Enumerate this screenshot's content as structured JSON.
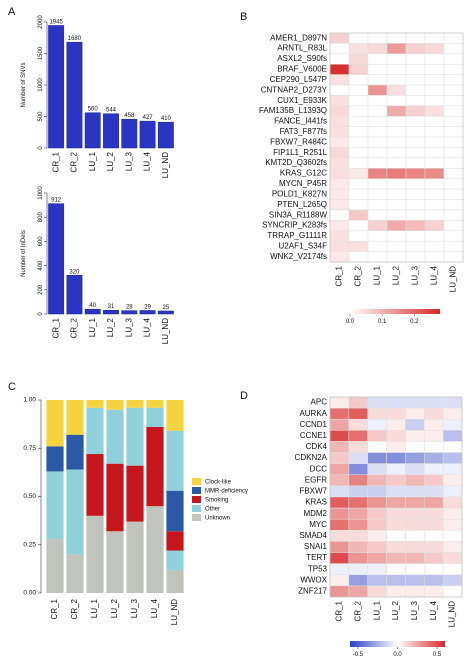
{
  "panels": {
    "a": "A",
    "b": "B",
    "c": "C",
    "d": "D"
  },
  "colors": {
    "bar_fill": "#2a35c4",
    "bar_stroke": "#1c2590",
    "heat_high": "#d62828",
    "heat_low": "#ffffff",
    "heat_neg": "#2c3fbf",
    "heat_cell_border": "#e0e0e0",
    "stack_clock": "#f4d33e",
    "stack_mmr": "#2b59a6",
    "stack_smoking": "#c4161c",
    "stack_other": "#8fd0da",
    "stack_unknown": "#c0c4bd"
  },
  "chart_data": [
    {
      "id": "a-top",
      "type": "bar",
      "categories": [
        "CR_1",
        "CR_2",
        "LU_1",
        "LU_2",
        "LU_3",
        "LU_4",
        "LU_ND"
      ],
      "values": [
        1945,
        1680,
        560,
        544,
        458,
        427,
        410
      ],
      "labels": [
        "1945",
        "1680",
        "560",
        "544",
        "458",
        "427",
        "410"
      ],
      "ylabel": "Number of SNVs",
      "ylim": [
        0,
        2000
      ],
      "yticks": [
        0,
        500,
        1000,
        1500,
        2000
      ],
      "ytick_labels": [
        "0",
        "500",
        "1000",
        "1500",
        "2000"
      ]
    },
    {
      "id": "a-bottom",
      "type": "bar",
      "categories": [
        "CR_1",
        "CR_2",
        "LU_1",
        "LU_2",
        "LU_3",
        "LU_4",
        "LU_ND"
      ],
      "values": [
        912,
        320,
        40,
        31,
        28,
        29,
        25
      ],
      "labels": [
        "912",
        "320",
        "40",
        "31",
        "28",
        "29",
        "25"
      ],
      "ylabel": "Number of InDels",
      "ylim": [
        0,
        1000
      ],
      "yticks": [
        0,
        200,
        400,
        600,
        800,
        1000
      ],
      "ytick_labels": [
        "0",
        "200",
        "400",
        "600",
        "800",
        "1000"
      ]
    },
    {
      "id": "b",
      "type": "heatmap",
      "rows": [
        "AMER1_D897N",
        "ARNTL_R83L",
        "ASXL2_S90fs",
        "BRAF_V600E",
        "CEP290_L547P",
        "CNTNAP2_D273Y",
        "CUX1_E933K",
        "FAM135B_L1393Q",
        "FANCE_I441fs",
        "FAT3_F877fs",
        "FBXW7_R484C",
        "FIP1L1_R251L",
        "KMT2D_Q3602fs",
        "KRAS_G12C",
        "MYCN_P45R",
        "POLD1_K827N",
        "PTEN_L265Q",
        "SIN3A_R1188W",
        "SYNCRIP_K283fs",
        "TRRAP_G1111R",
        "U2AF1_S34F",
        "WNK2_V2174fs"
      ],
      "columns": [
        "CR_1",
        "CR_2",
        "LU_1",
        "LU_2",
        "LU_3",
        "LU_4",
        "LU_ND"
      ],
      "values": [
        [
          0.06,
          0.0,
          0.0,
          0.0,
          0.0,
          0.0,
          0.0
        ],
        [
          0.0,
          0.04,
          0.05,
          0.13,
          0.06,
          0.05,
          0.0
        ],
        [
          0.0,
          0.05,
          0.0,
          0.0,
          0.0,
          0.0,
          0.0
        ],
        [
          0.27,
          0.06,
          0.0,
          0.0,
          0.0,
          0.0,
          0.0
        ],
        [
          0.04,
          0.0,
          0.0,
          0.0,
          0.0,
          0.0,
          0.0
        ],
        [
          0.0,
          0.0,
          0.14,
          0.04,
          0.0,
          0.0,
          0.0
        ],
        [
          0.04,
          0.0,
          0.0,
          0.0,
          0.0,
          0.0,
          0.0
        ],
        [
          0.05,
          0.0,
          0.0,
          0.11,
          0.06,
          0.04,
          0.0
        ],
        [
          0.04,
          0.0,
          0.0,
          0.0,
          0.0,
          0.0,
          0.0
        ],
        [
          0.04,
          0.0,
          0.0,
          0.0,
          0.0,
          0.0,
          0.0
        ],
        [
          0.03,
          0.0,
          0.0,
          0.0,
          0.0,
          0.0,
          0.0
        ],
        [
          0.05,
          0.0,
          0.0,
          0.0,
          0.0,
          0.0,
          0.0
        ],
        [
          0.04,
          0.0,
          0.0,
          0.0,
          0.0,
          0.0,
          0.0
        ],
        [
          0.04,
          0.03,
          0.16,
          0.17,
          0.16,
          0.15,
          0.0
        ],
        [
          0.03,
          0.0,
          0.0,
          0.0,
          0.0,
          0.0,
          0.0
        ],
        [
          0.03,
          0.0,
          0.0,
          0.0,
          0.0,
          0.0,
          0.0
        ],
        [
          0.03,
          0.0,
          0.0,
          0.0,
          0.0,
          0.0,
          0.0
        ],
        [
          0.0,
          0.07,
          0.0,
          0.0,
          0.0,
          0.0,
          0.0
        ],
        [
          0.03,
          0.0,
          0.06,
          0.11,
          0.09,
          0.06,
          0.0
        ],
        [
          0.04,
          0.0,
          0.0,
          0.0,
          0.0,
          0.0,
          0.0
        ],
        [
          0.04,
          0.04,
          0.0,
          0.0,
          0.0,
          0.0,
          0.0
        ],
        [
          0.03,
          0.0,
          0.0,
          0.0,
          0.0,
          0.0,
          0.0
        ]
      ],
      "vmin": 0,
      "vmax": 0.28,
      "colorbar_ticks": [
        0.0,
        0.1,
        0.2
      ],
      "colorbar_labels": [
        "0.0",
        "0.1",
        "0.2"
      ]
    },
    {
      "id": "c",
      "type": "bar",
      "stacked": true,
      "categories": [
        "CR_1",
        "CR_2",
        "LU_1",
        "LU_2",
        "LU_3",
        "LU_4",
        "LU_ND"
      ],
      "series": [
        {
          "name": "Unknown",
          "values": [
            0.28,
            0.2,
            0.4,
            0.32,
            0.37,
            0.45,
            0.12
          ]
        },
        {
          "name": "Other",
          "values": [
            0.35,
            0.44,
            0.0,
            0.0,
            0.0,
            0.0,
            0.1
          ]
        },
        {
          "name": "Smoking",
          "values": [
            0.0,
            0.0,
            0.32,
            0.35,
            0.29,
            0.41,
            0.1
          ]
        },
        {
          "name": "MMR-deficiency",
          "values": [
            0.13,
            0.18,
            0.0,
            0.0,
            0.0,
            0.0,
            0.21
          ]
        },
        {
          "name": "Other",
          "values": [
            0.0,
            0.0,
            0.24,
            0.28,
            0.3,
            0.1,
            0.31
          ]
        },
        {
          "name": "Clock-like",
          "values": [
            0.24,
            0.18,
            0.04,
            0.05,
            0.04,
            0.04,
            0.16
          ]
        }
      ],
      "legend": [
        {
          "name": "Clock-like",
          "color": "#f4d33e"
        },
        {
          "name": "MMR-deficiency",
          "color": "#2b59a6"
        },
        {
          "name": "Smoking",
          "color": "#c4161c"
        },
        {
          "name": "Other",
          "color": "#8fd0da"
        },
        {
          "name": "Unknown",
          "color": "#c0c4bd"
        }
      ],
      "legend_position": "right",
      "ylim": [
        0,
        1
      ],
      "yticks": [
        0,
        0.25,
        0.5,
        0.75,
        1.0
      ],
      "ytick_labels": [
        "0.00",
        "0.25",
        "0.50",
        "0.75",
        "1.00"
      ]
    },
    {
      "id": "d",
      "type": "heatmap",
      "rows": [
        "APC",
        "AURKA",
        "CCND1",
        "CCNE1",
        "CDK4",
        "CDKN2A",
        "DCC",
        "EGFR",
        "FBXW7",
        "KRAS",
        "MDM2",
        "MYC",
        "SMAD4",
        "SNAI1",
        "TERT",
        "TP53",
        "WWOX",
        "ZNF217"
      ],
      "columns": [
        "CR_1",
        "CR_2",
        "LU_1",
        "LU_2",
        "LU_3",
        "LU_4",
        "LU_ND"
      ],
      "values": [
        [
          0.05,
          0.15,
          -0.1,
          -0.1,
          -0.1,
          -0.1,
          -0.1
        ],
        [
          0.4,
          0.45,
          0.1,
          0.1,
          0.05,
          0.1,
          0.05
        ],
        [
          0.25,
          0.1,
          -0.05,
          0.05,
          -0.15,
          0.05,
          -0.05
        ],
        [
          0.5,
          0.4,
          0.15,
          0.1,
          0.05,
          0.05,
          -0.2
        ],
        [
          0.2,
          0.1,
          0.0,
          0.05,
          0.0,
          0.0,
          0.0
        ],
        [
          0.15,
          -0.1,
          -0.35,
          -0.35,
          -0.3,
          -0.25,
          -0.2
        ],
        [
          0.25,
          -0.35,
          -0.1,
          -0.05,
          -0.1,
          -0.05,
          -0.05
        ],
        [
          0.2,
          0.35,
          0.2,
          0.15,
          0.2,
          0.15,
          0.05
        ],
        [
          -0.1,
          -0.15,
          -0.15,
          -0.1,
          -0.1,
          -0.1,
          -0.05
        ],
        [
          0.45,
          0.4,
          0.3,
          0.25,
          0.25,
          0.25,
          0.1
        ],
        [
          0.3,
          0.25,
          0.15,
          0.1,
          0.1,
          0.1,
          0.05
        ],
        [
          0.4,
          0.3,
          0.15,
          0.1,
          0.1,
          0.1,
          0.05
        ],
        [
          0.1,
          0.1,
          0.05,
          0.0,
          0.0,
          0.0,
          0.0
        ],
        [
          0.3,
          0.2,
          0.15,
          0.1,
          0.1,
          0.1,
          0.05
        ],
        [
          0.5,
          0.3,
          0.25,
          0.2,
          0.2,
          0.15,
          0.1
        ],
        [
          -0.05,
          -0.05,
          -0.05,
          0.0,
          0.0,
          0.0,
          0.0
        ],
        [
          0.05,
          -0.3,
          -0.2,
          -0.2,
          -0.2,
          -0.2,
          -0.15
        ],
        [
          0.3,
          0.25,
          0.1,
          0.05,
          0.05,
          0.05,
          0.0
        ]
      ],
      "vmin": -0.6,
      "vmax": 0.6,
      "colorbar_ticks": [
        -0.5,
        0.0,
        0.5
      ],
      "colorbar_labels": [
        "-0.5",
        "0.0",
        "0.5"
      ]
    }
  ]
}
